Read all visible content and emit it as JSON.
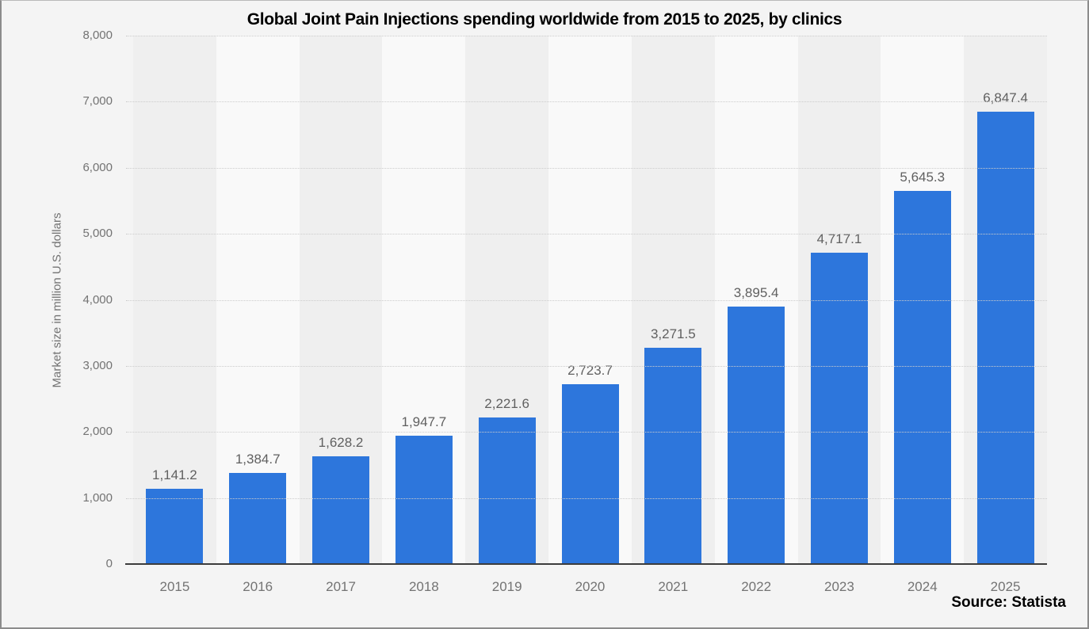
{
  "chart_data": {
    "type": "bar",
    "title": "Global Joint Pain Injections spending worldwide from 2015 to 2025, by clinics",
    "ylabel": "Market size in million U.S. dollars",
    "xlabel": "",
    "categories": [
      "2015",
      "2016",
      "2017",
      "2018",
      "2019",
      "2020",
      "2021",
      "2022",
      "2023",
      "2024",
      "2025"
    ],
    "values": [
      1141.2,
      1384.7,
      1628.2,
      1947.7,
      2221.6,
      2723.7,
      3271.5,
      3895.4,
      4717.1,
      5645.3,
      6847.4
    ],
    "value_labels": [
      "1,141.2",
      "1,384.7",
      "1,628.2",
      "1,947.7",
      "2,221.6",
      "2,723.7",
      "3,271.5",
      "3,895.4",
      "4,717.1",
      "5,645.3",
      "6,847.4"
    ],
    "ylim": [
      0,
      8000
    ],
    "ytick_step": 1000,
    "ytick_labels": [
      "0",
      "1,000",
      "2,000",
      "3,000",
      "4,000",
      "5,000",
      "6,000",
      "7,000",
      "8,000"
    ],
    "grid": "horizontal-dotted",
    "legend": false,
    "background_stripes": "alternating vertical bands per category, first column darker"
  },
  "source": {
    "label": "Source: Statista"
  },
  "colors": {
    "bar": "#2d76dc",
    "page_background": "#f4f4f4",
    "stripe_dark": "#efefef",
    "stripe_light": "#f9f9f9",
    "gridline": "#cccccc",
    "axis_line": "#3c3c3c",
    "tick_text": "#737373",
    "value_label_text": "#606060",
    "title_text": "#000000",
    "border": "#8c8c8c"
  }
}
